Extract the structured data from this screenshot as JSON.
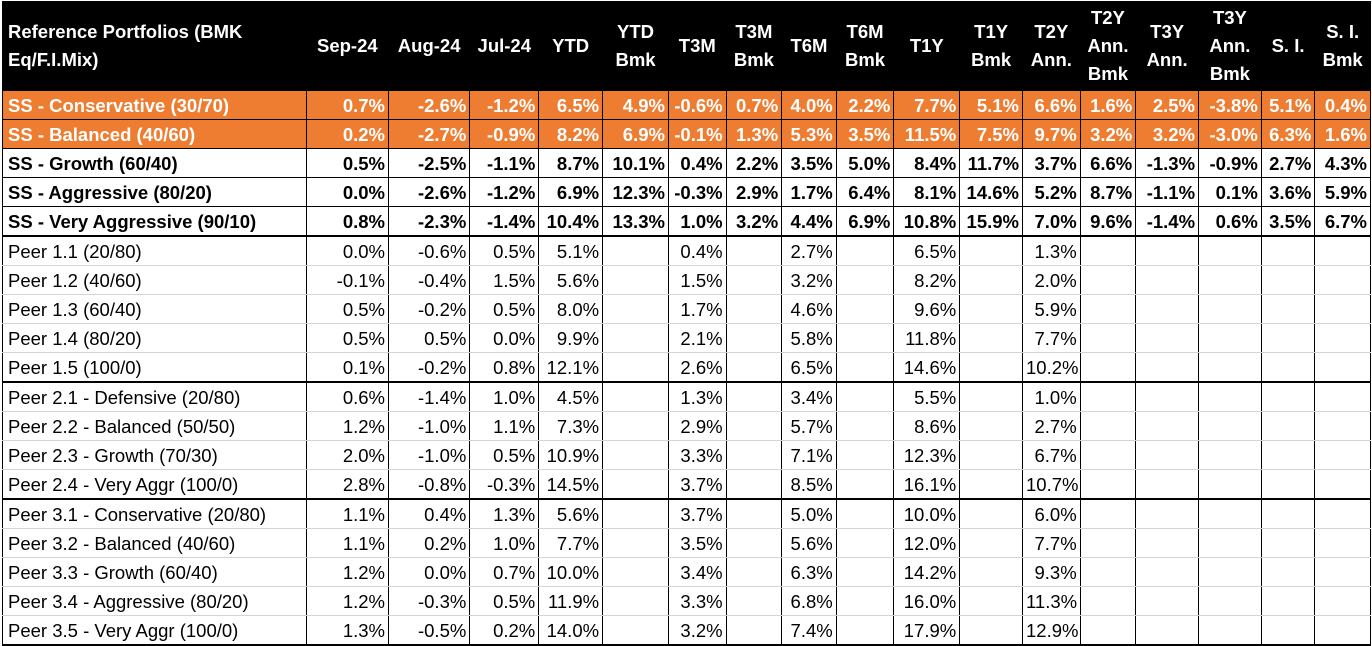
{
  "headers": [
    "Reference Portfolios (BMK Eq/F.I.Mix)",
    "Sep-24",
    "Aug-24",
    "Jul-24",
    "YTD",
    "YTD Bmk",
    "T3M",
    "T3M Bmk",
    "T6M",
    "T6M Bmk",
    "T1Y",
    "T1Y Bmk",
    "T2Y Ann.",
    "T2Y Ann. Bmk",
    "T3Y Ann.",
    "T3Y Ann. Bmk",
    "S. I.",
    "S. I. Bmk"
  ],
  "rows": [
    {
      "style": "orange",
      "cells": [
        "SS - Conservative (30/70)",
        "0.7%",
        "-2.6%",
        "-1.2%",
        "6.5%",
        "4.9%",
        "-0.6%",
        "0.7%",
        "4.0%",
        "2.2%",
        "7.7%",
        "5.1%",
        "6.6%",
        "1.6%",
        "2.5%",
        "-3.8%",
        "5.1%",
        "0.4%"
      ]
    },
    {
      "style": "orange",
      "cells": [
        "SS - Balanced (40/60)",
        "0.2%",
        "-2.7%",
        "-0.9%",
        "8.2%",
        "6.9%",
        "-0.1%",
        "1.3%",
        "5.3%",
        "3.5%",
        "11.5%",
        "7.5%",
        "9.7%",
        "3.2%",
        "3.2%",
        "-3.0%",
        "6.3%",
        "1.6%"
      ]
    },
    {
      "style": "ss",
      "cells": [
        "SS - Growth (60/40)",
        "0.5%",
        "-2.5%",
        "-1.1%",
        "8.7%",
        "10.1%",
        "0.4%",
        "2.2%",
        "3.5%",
        "5.0%",
        "8.4%",
        "11.7%",
        "3.7%",
        "6.6%",
        "-1.3%",
        "-0.9%",
        "2.7%",
        "4.3%"
      ]
    },
    {
      "style": "ss",
      "cells": [
        "SS - Aggressive (80/20)",
        "0.0%",
        "-2.6%",
        "-1.2%",
        "6.9%",
        "12.3%",
        "-0.3%",
        "2.9%",
        "1.7%",
        "6.4%",
        "8.1%",
        "14.6%",
        "5.2%",
        "8.7%",
        "-1.1%",
        "0.1%",
        "3.6%",
        "5.9%"
      ]
    },
    {
      "style": "ss",
      "cells": [
        "SS - Very Aggressive (90/10)",
        "0.8%",
        "-2.3%",
        "-1.4%",
        "10.4%",
        "13.3%",
        "1.0%",
        "3.2%",
        "4.4%",
        "6.9%",
        "10.8%",
        "15.9%",
        "7.0%",
        "9.6%",
        "-1.4%",
        "0.6%",
        "3.5%",
        "6.7%"
      ]
    },
    {
      "style": "peer grp-start",
      "cells": [
        "Peer 1.1 (20/80)",
        "0.0%",
        "-0.6%",
        "0.5%",
        "5.1%",
        "",
        "0.4%",
        "",
        "2.7%",
        "",
        "6.5%",
        "",
        "1.3%",
        "",
        "",
        "",
        "",
        ""
      ]
    },
    {
      "style": "peer",
      "cells": [
        "Peer 1.2 (40/60)",
        "-0.1%",
        "-0.4%",
        "1.5%",
        "5.6%",
        "",
        "1.5%",
        "",
        "3.2%",
        "",
        "8.2%",
        "",
        "2.0%",
        "",
        "",
        "",
        "",
        ""
      ]
    },
    {
      "style": "peer",
      "cells": [
        "Peer 1.3 (60/40)",
        "0.5%",
        "-0.2%",
        "0.5%",
        "8.0%",
        "",
        "1.7%",
        "",
        "4.6%",
        "",
        "9.6%",
        "",
        "5.9%",
        "",
        "",
        "",
        "",
        ""
      ]
    },
    {
      "style": "peer",
      "cells": [
        "Peer 1.4 (80/20)",
        "0.5%",
        "0.5%",
        "0.0%",
        "9.9%",
        "",
        "2.1%",
        "",
        "5.8%",
        "",
        "11.8%",
        "",
        "7.7%",
        "",
        "",
        "",
        "",
        ""
      ]
    },
    {
      "style": "peer",
      "cells": [
        "Peer 1.5 (100/0)",
        "0.1%",
        "-0.2%",
        "0.8%",
        "12.1%",
        "",
        "2.6%",
        "",
        "6.5%",
        "",
        "14.6%",
        "",
        "10.2%",
        "",
        "",
        "",
        "",
        ""
      ]
    },
    {
      "style": "peer grp-start",
      "cells": [
        "Peer 2.1  - Defensive  (20/80)",
        "0.6%",
        "-1.4%",
        "1.0%",
        "4.5%",
        "",
        "1.3%",
        "",
        "3.4%",
        "",
        "5.5%",
        "",
        "1.0%",
        "",
        "",
        "",
        "",
        ""
      ]
    },
    {
      "style": "peer",
      "cells": [
        "Peer 2.2  - Balanced  (50/50)",
        "1.2%",
        "-1.0%",
        "1.1%",
        "7.3%",
        "",
        "2.9%",
        "",
        "5.7%",
        "",
        "8.6%",
        "",
        "2.7%",
        "",
        "",
        "",
        "",
        ""
      ]
    },
    {
      "style": "peer",
      "cells": [
        "Peer 2.3  - Growth  (70/30)",
        "2.0%",
        "-1.0%",
        "0.5%",
        "10.9%",
        "",
        "3.3%",
        "",
        "7.1%",
        "",
        "12.3%",
        "",
        "6.7%",
        "",
        "",
        "",
        "",
        ""
      ]
    },
    {
      "style": "peer",
      "cells": [
        "Peer 2.4  - Very Aggr  (100/0)",
        "2.8%",
        "-0.8%",
        "-0.3%",
        "14.5%",
        "",
        "3.7%",
        "",
        "8.5%",
        "",
        "16.1%",
        "",
        "10.7%",
        "",
        "",
        "",
        "",
        ""
      ]
    },
    {
      "style": "peer grp-start",
      "cells": [
        "Peer 3.1 - Conservative (20/80)",
        "1.1%",
        "0.4%",
        "1.3%",
        "5.6%",
        "",
        "3.7%",
        "",
        "5.0%",
        "",
        "10.0%",
        "",
        "6.0%",
        "",
        "",
        "",
        "",
        ""
      ]
    },
    {
      "style": "peer",
      "cells": [
        "Peer 3.2 - Balanced  (40/60)",
        "1.1%",
        "0.2%",
        "1.0%",
        "7.7%",
        "",
        "3.5%",
        "",
        "5.6%",
        "",
        "12.0%",
        "",
        "7.7%",
        "",
        "",
        "",
        "",
        ""
      ]
    },
    {
      "style": "peer",
      "cells": [
        "Peer 3.3 - Growth  (60/40)",
        "1.2%",
        "0.0%",
        "0.7%",
        "10.0%",
        "",
        "3.4%",
        "",
        "6.3%",
        "",
        "14.2%",
        "",
        "9.3%",
        "",
        "",
        "",
        "",
        ""
      ]
    },
    {
      "style": "peer",
      "cells": [
        "Peer 3.4 - Aggressive  (80/20)",
        "1.2%",
        "-0.3%",
        "0.5%",
        "11.9%",
        "",
        "3.3%",
        "",
        "6.8%",
        "",
        "16.0%",
        "",
        "11.3%",
        "",
        "",
        "",
        "",
        ""
      ]
    },
    {
      "style": "peer last",
      "cells": [
        "Peer 3.5  - Very Aggr (100/0)",
        "1.3%",
        "-0.5%",
        "0.2%",
        "14.0%",
        "",
        "3.2%",
        "",
        "7.4%",
        "",
        "17.9%",
        "",
        "12.9%",
        "",
        "",
        "",
        "",
        ""
      ]
    }
  ],
  "colors": {
    "orange_row": "#ee7d31",
    "header_bg": "#000000",
    "header_text": "#ffffff"
  }
}
